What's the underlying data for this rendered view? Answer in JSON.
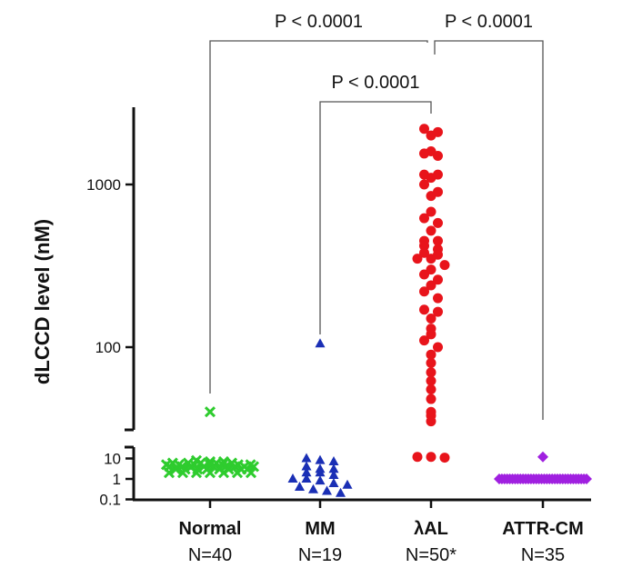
{
  "chart_data": {
    "type": "scatter",
    "ylabel": "dLCCD level (nM)",
    "y_scale": "log",
    "y_axis_upper_ticks": [
      "1000",
      "100"
    ],
    "y_axis_lower_ticks": [
      "10",
      "1",
      "0.1"
    ],
    "categories": [
      {
        "label": "Normal",
        "n_label": "N=40"
      },
      {
        "label": "MM",
        "n_label": "N=19"
      },
      {
        "label": "λAL",
        "n_label": "N=50*"
      },
      {
        "label": "ATTR-CM",
        "n_label": "N=35"
      }
    ],
    "series": [
      {
        "category": "Normal",
        "marker": "cross",
        "color": "#2ecc2e",
        "values": [
          40,
          5,
          4,
          6,
          3,
          2,
          5,
          8,
          4,
          3,
          6,
          2,
          7,
          4,
          5,
          3,
          2,
          6,
          4,
          3,
          5,
          2,
          4,
          6,
          3,
          7,
          2,
          5,
          4,
          3,
          6,
          2,
          4,
          5,
          3,
          2,
          4,
          3,
          5,
          4
        ]
      },
      {
        "category": "MM",
        "marker": "triangle",
        "color": "#1a2fb5",
        "values": [
          105,
          10,
          8,
          7,
          4,
          3,
          3,
          2,
          2,
          1.5,
          1,
          1,
          0.8,
          0.6,
          0.5,
          0.4,
          0.3,
          0.25,
          0.2
        ]
      },
      {
        "category": "λAL",
        "marker": "circle",
        "color": "#e8141b",
        "values": [
          2200,
          2100,
          2000,
          1600,
          1550,
          1500,
          1150,
          1150,
          1100,
          1000,
          900,
          850,
          680,
          620,
          580,
          520,
          450,
          450,
          420,
          400,
          380,
          370,
          350,
          350,
          320,
          300,
          280,
          260,
          240,
          220,
          200,
          170,
          165,
          150,
          130,
          120,
          110,
          100,
          90,
          80,
          70,
          62,
          55,
          48,
          40,
          38,
          35,
          12,
          12,
          11
        ]
      },
      {
        "category": "ATTR-CM",
        "marker": "diamond",
        "color": "#a020e0",
        "values": [
          12,
          1,
          1,
          1,
          1,
          1,
          1,
          1,
          1,
          1,
          1,
          1,
          1,
          1,
          1,
          1,
          1,
          1,
          1,
          1,
          1,
          1,
          1,
          1,
          1,
          1,
          1,
          1,
          1,
          1,
          1,
          1,
          1,
          1,
          1
        ]
      }
    ],
    "comparisons": [
      {
        "from": "Normal",
        "to": "λAL",
        "label": "P < 0.0001"
      },
      {
        "from": "λAL",
        "to": "ATTR-CM",
        "label": "P < 0.0001"
      },
      {
        "from": "MM",
        "to": "λAL",
        "label": "P < 0.0001"
      }
    ]
  }
}
